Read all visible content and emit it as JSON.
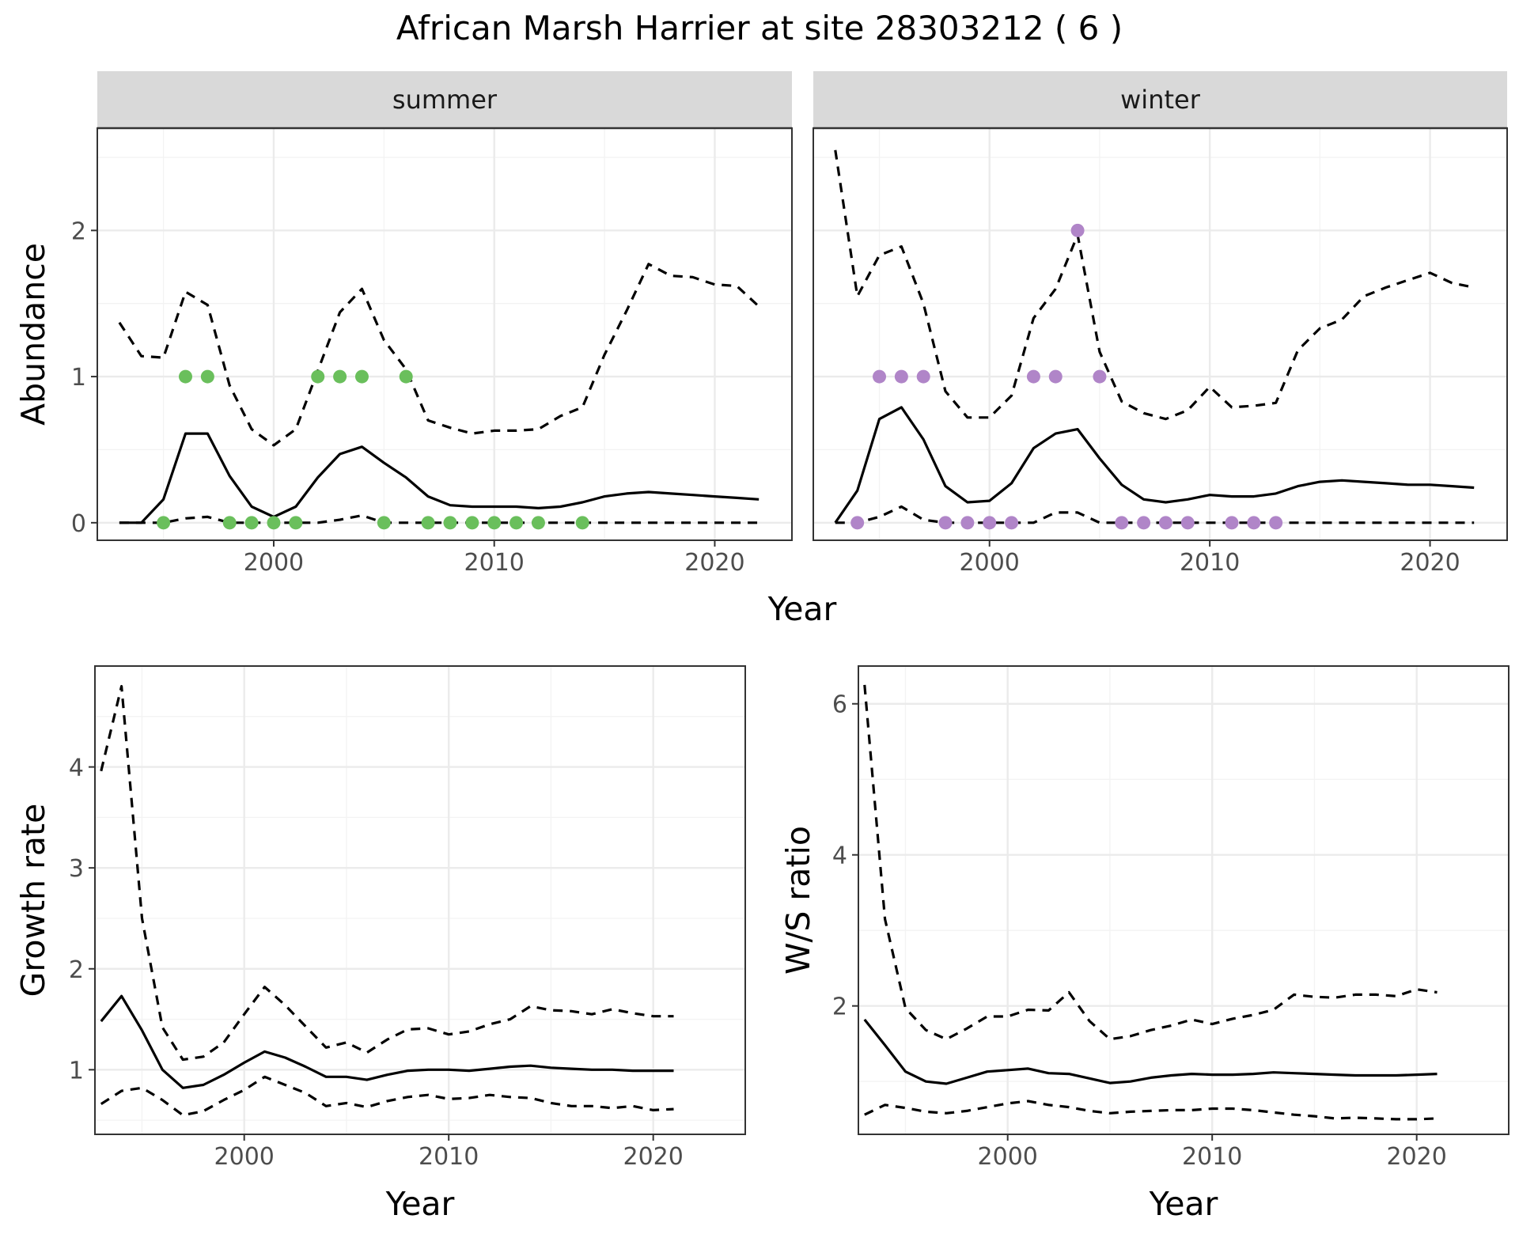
{
  "title": "African Marsh Harrier at site 28303212 ( 6 )",
  "colors": {
    "summer_points": "#6ABF5C",
    "winter_points": "#B085C8",
    "lines": "#000000"
  },
  "chart_data": [
    {
      "type": "line",
      "facet": "summer",
      "xlabel": "Year",
      "ylabel": "Abundance",
      "xlim": [
        1992,
        2023.5
      ],
      "ylim": [
        -0.12,
        2.7
      ],
      "x_ticks": [
        2000,
        2010,
        2020
      ],
      "y_ticks": [
        0,
        1,
        2
      ],
      "series": [
        {
          "style": "solid",
          "x": [
            1993,
            1994,
            1995,
            1996,
            1997,
            1998,
            1999,
            2000,
            2001,
            2002,
            2003,
            2004,
            2005,
            2006,
            2007,
            2008,
            2009,
            2010,
            2011,
            2012,
            2013,
            2014,
            2015,
            2016,
            2017,
            2018,
            2019,
            2020,
            2021,
            2022
          ],
          "y": [
            0,
            0,
            0.16,
            0.61,
            0.61,
            0.32,
            0.11,
            0.04,
            0.11,
            0.31,
            0.47,
            0.52,
            0.41,
            0.31,
            0.18,
            0.12,
            0.11,
            0.11,
            0.11,
            0.1,
            0.11,
            0.14,
            0.18,
            0.2,
            0.21,
            0.2,
            0.19,
            0.18,
            0.17,
            0.16
          ]
        },
        {
          "style": "dashed",
          "x": [
            1993,
            1994,
            1995,
            1996,
            1997,
            1998,
            1999,
            2000,
            2001,
            2002,
            2003,
            2004,
            2005,
            2006,
            2007,
            2008,
            2009,
            2010,
            2011,
            2012,
            2013,
            2014,
            2015,
            2016,
            2017,
            2018,
            2019,
            2020,
            2021,
            2022
          ],
          "y": [
            1.37,
            1.14,
            1.13,
            1.58,
            1.49,
            0.94,
            0.64,
            0.53,
            0.64,
            1.04,
            1.44,
            1.6,
            1.25,
            1.05,
            0.7,
            0.65,
            0.61,
            0.63,
            0.63,
            0.64,
            0.73,
            0.79,
            1.15,
            1.45,
            1.77,
            1.69,
            1.68,
            1.63,
            1.62,
            1.48
          ]
        },
        {
          "style": "dashed",
          "x": [
            1993,
            1994,
            1995,
            1996,
            1997,
            1998,
            1999,
            2000,
            2001,
            2002,
            2003,
            2004,
            2005,
            2006,
            2007,
            2008,
            2009,
            2010,
            2011,
            2012,
            2013,
            2014,
            2015,
            2016,
            2017,
            2018,
            2019,
            2020,
            2021,
            2022
          ],
          "y": [
            0,
            0,
            0,
            0.03,
            0.04,
            0,
            0,
            0,
            0,
            0,
            0.02,
            0.05,
            0,
            0,
            0,
            0,
            0,
            0,
            0,
            0,
            0,
            0,
            0,
            0,
            0,
            0,
            0,
            0,
            0,
            0
          ]
        }
      ],
      "points": {
        "x": [
          1995,
          1996,
          1997,
          1998,
          1999,
          2000,
          2001,
          2002,
          2003,
          2004,
          2005,
          2006,
          2007,
          2008,
          2009,
          2010,
          2011,
          2012,
          2014
        ],
        "y": [
          0,
          1,
          1,
          0,
          0,
          0,
          0,
          1,
          1,
          1,
          0,
          1,
          0,
          0,
          0,
          0,
          0,
          0,
          0
        ]
      }
    },
    {
      "type": "line",
      "facet": "winter",
      "xlabel": "Year",
      "ylabel": "",
      "xlim": [
        1992,
        2023.5
      ],
      "ylim": [
        -0.12,
        2.7
      ],
      "x_ticks": [
        2000,
        2010,
        2020
      ],
      "y_ticks": [
        0,
        1,
        2
      ],
      "series": [
        {
          "style": "solid",
          "x": [
            1993,
            1994,
            1995,
            1996,
            1997,
            1998,
            1999,
            2000,
            2001,
            2002,
            2003,
            2004,
            2005,
            2006,
            2007,
            2008,
            2009,
            2010,
            2011,
            2012,
            2013,
            2014,
            2015,
            2016,
            2017,
            2018,
            2019,
            2020,
            2021,
            2022
          ],
          "y": [
            0,
            0.22,
            0.71,
            0.79,
            0.57,
            0.25,
            0.14,
            0.15,
            0.27,
            0.51,
            0.61,
            0.64,
            0.44,
            0.26,
            0.16,
            0.14,
            0.16,
            0.19,
            0.18,
            0.18,
            0.2,
            0.25,
            0.28,
            0.29,
            0.28,
            0.27,
            0.26,
            0.26,
            0.25,
            0.24
          ]
        },
        {
          "style": "dashed",
          "x": [
            1993,
            1994,
            1995,
            1996,
            1997,
            1998,
            1999,
            2000,
            2001,
            2002,
            2003,
            2004,
            2005,
            2006,
            2007,
            2008,
            2009,
            2010,
            2011,
            2012,
            2013,
            2014,
            2015,
            2016,
            2017,
            2018,
            2019,
            2020,
            2021,
            2022
          ],
          "y": [
            2.55,
            1.55,
            1.83,
            1.89,
            1.5,
            0.9,
            0.72,
            0.72,
            0.87,
            1.4,
            1.6,
            1.97,
            1.17,
            0.83,
            0.75,
            0.71,
            0.77,
            0.93,
            0.79,
            0.8,
            0.82,
            1.18,
            1.33,
            1.39,
            1.55,
            1.61,
            1.66,
            1.71,
            1.64,
            1.61
          ]
        },
        {
          "style": "dashed",
          "x": [
            1993,
            1994,
            1995,
            1996,
            1997,
            1998,
            1999,
            2000,
            2001,
            2002,
            2003,
            2004,
            2005,
            2006,
            2007,
            2008,
            2009,
            2010,
            2011,
            2012,
            2013,
            2014,
            2015,
            2016,
            2017,
            2018,
            2019,
            2020,
            2021,
            2022
          ],
          "y": [
            0,
            0,
            0.04,
            0.11,
            0.02,
            0,
            0,
            0,
            0,
            0,
            0.07,
            0.07,
            0,
            0,
            0,
            0,
            0,
            0,
            0,
            0,
            0,
            0,
            0,
            0,
            0,
            0,
            0,
            0,
            0,
            0
          ]
        }
      ],
      "points": {
        "x": [
          1994,
          1995,
          1996,
          1997,
          1998,
          1999,
          2000,
          2001,
          2002,
          2003,
          2004,
          2005,
          2006,
          2007,
          2008,
          2009,
          2011,
          2012,
          2013
        ],
        "y": [
          0,
          1,
          1,
          1,
          0,
          0,
          0,
          0,
          1,
          1,
          2,
          1,
          0,
          0,
          0,
          0,
          0,
          0,
          0
        ]
      }
    },
    {
      "type": "line",
      "xlabel": "Year",
      "ylabel": "Growth rate",
      "xlim": [
        1992.7,
        2024.5
      ],
      "ylim": [
        0.36,
        5.0
      ],
      "x_ticks": [
        2000,
        2010,
        2020
      ],
      "y_ticks": [
        1,
        2,
        3,
        4
      ],
      "series": [
        {
          "style": "solid",
          "x": [
            1993,
            1994,
            1995,
            1996,
            1997,
            1998,
            1999,
            2000,
            2001,
            2002,
            2003,
            2004,
            2005,
            2006,
            2007,
            2008,
            2009,
            2010,
            2011,
            2012,
            2013,
            2014,
            2015,
            2016,
            2017,
            2018,
            2019,
            2020,
            2021
          ],
          "y": [
            1.48,
            1.73,
            1.39,
            1.0,
            0.82,
            0.85,
            0.95,
            1.07,
            1.18,
            1.12,
            1.03,
            0.93,
            0.93,
            0.9,
            0.95,
            0.99,
            1.0,
            1.0,
            0.99,
            1.01,
            1.03,
            1.04,
            1.02,
            1.01,
            1.0,
            1.0,
            0.99,
            0.99,
            0.99
          ]
        },
        {
          "style": "dashed",
          "x": [
            1993,
            1994,
            1995,
            1996,
            1997,
            1998,
            1999,
            2000,
            2001,
            2002,
            2003,
            2004,
            2005,
            2006,
            2007,
            2008,
            2009,
            2010,
            2011,
            2012,
            2013,
            2014,
            2015,
            2016,
            2017,
            2018,
            2019,
            2020,
            2021
          ],
          "y": [
            3.96,
            4.8,
            2.5,
            1.42,
            1.1,
            1.13,
            1.27,
            1.55,
            1.82,
            1.64,
            1.43,
            1.22,
            1.27,
            1.17,
            1.3,
            1.4,
            1.41,
            1.35,
            1.38,
            1.45,
            1.5,
            1.63,
            1.59,
            1.58,
            1.55,
            1.6,
            1.56,
            1.53,
            1.53
          ]
        },
        {
          "style": "dashed",
          "x": [
            1993,
            1994,
            1995,
            1996,
            1997,
            1998,
            1999,
            2000,
            2001,
            2002,
            2003,
            2004,
            2005,
            2006,
            2007,
            2008,
            2009,
            2010,
            2011,
            2012,
            2013,
            2014,
            2015,
            2016,
            2017,
            2018,
            2019,
            2020,
            2021
          ],
          "y": [
            0.66,
            0.79,
            0.82,
            0.7,
            0.55,
            0.59,
            0.7,
            0.8,
            0.93,
            0.85,
            0.77,
            0.64,
            0.67,
            0.63,
            0.69,
            0.73,
            0.75,
            0.71,
            0.72,
            0.75,
            0.73,
            0.72,
            0.67,
            0.64,
            0.64,
            0.62,
            0.64,
            0.6,
            0.61
          ]
        }
      ]
    },
    {
      "type": "line",
      "xlabel": "Year",
      "ylabel": "W/S ratio",
      "xlim": [
        1992.7,
        2024.5
      ],
      "ylim": [
        0.3,
        6.5
      ],
      "x_ticks": [
        2000,
        2010,
        2020
      ],
      "y_ticks": [
        2,
        4,
        6
      ],
      "series": [
        {
          "style": "solid",
          "x": [
            1993,
            1994,
            1995,
            1996,
            1997,
            1998,
            1999,
            2000,
            2001,
            2002,
            2003,
            2004,
            2005,
            2006,
            2007,
            2008,
            2009,
            2010,
            2011,
            2012,
            2013,
            2014,
            2015,
            2016,
            2017,
            2018,
            2019,
            2020,
            2021
          ],
          "y": [
            1.82,
            1.48,
            1.13,
            1.0,
            0.97,
            1.05,
            1.13,
            1.15,
            1.17,
            1.11,
            1.1,
            1.04,
            0.98,
            1.0,
            1.05,
            1.08,
            1.1,
            1.09,
            1.09,
            1.1,
            1.12,
            1.11,
            1.1,
            1.09,
            1.08,
            1.08,
            1.08,
            1.09,
            1.1
          ]
        },
        {
          "style": "dashed",
          "x": [
            1993,
            1994,
            1995,
            1996,
            1997,
            1998,
            1999,
            2000,
            2001,
            2002,
            2003,
            2004,
            2005,
            2006,
            2007,
            2008,
            2009,
            2010,
            2011,
            2012,
            2013,
            2014,
            2015,
            2016,
            2017,
            2018,
            2019,
            2020,
            2021
          ],
          "y": [
            6.25,
            3.15,
            1.97,
            1.68,
            1.56,
            1.7,
            1.86,
            1.86,
            1.95,
            1.94,
            2.18,
            1.8,
            1.56,
            1.6,
            1.68,
            1.74,
            1.82,
            1.76,
            1.83,
            1.88,
            1.95,
            2.15,
            2.12,
            2.11,
            2.15,
            2.15,
            2.13,
            2.22,
            2.18
          ]
        },
        {
          "style": "dashed",
          "x": [
            1993,
            1994,
            1995,
            1996,
            1997,
            1998,
            1999,
            2000,
            2001,
            2002,
            2003,
            2004,
            2005,
            2006,
            2007,
            2008,
            2009,
            2010,
            2011,
            2012,
            2013,
            2014,
            2015,
            2016,
            2017,
            2018,
            2019,
            2020,
            2021
          ],
          "y": [
            0.56,
            0.69,
            0.65,
            0.6,
            0.58,
            0.61,
            0.66,
            0.71,
            0.74,
            0.69,
            0.66,
            0.61,
            0.58,
            0.6,
            0.61,
            0.62,
            0.62,
            0.64,
            0.64,
            0.62,
            0.59,
            0.56,
            0.54,
            0.51,
            0.52,
            0.51,
            0.5,
            0.5,
            0.51
          ]
        }
      ]
    }
  ]
}
